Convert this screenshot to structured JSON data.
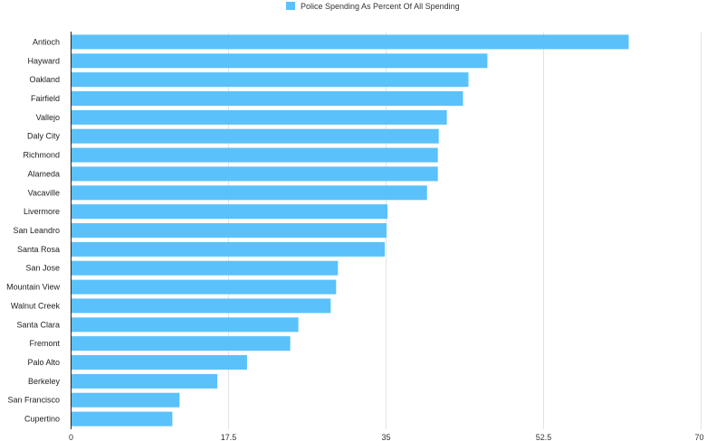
{
  "chart_data": {
    "type": "bar",
    "orientation": "horizontal",
    "title": "",
    "xlabel": "",
    "ylabel": "",
    "legend": {
      "position": "top-center",
      "entries": [
        "Police Spending As Percent Of All Spending"
      ]
    },
    "colors": {
      "bar": "#5ac1fb",
      "grid": "#e3e3e3",
      "axis": "#222222",
      "text": "#222222"
    },
    "grid": true,
    "xlim": [
      0,
      70
    ],
    "x_ticks": [
      0,
      17.5,
      35,
      52.5,
      70
    ],
    "x_tick_labels": [
      "0",
      "17.5",
      "35",
      "52.5",
      "70"
    ],
    "categories": [
      "Antioch",
      "Hayward",
      "Oakland",
      "Fairfield",
      "Vallejo",
      "Daly City",
      "Richmond",
      "Alameda",
      "Vacaville",
      "Livermore",
      "San Leandro",
      "Santa Rosa",
      "San Jose",
      "Mountain View",
      "Walnut Creek",
      "Santa Clara",
      "Fremont",
      "Palo Alto",
      "Berkeley",
      "San Francisco",
      "Cupertino"
    ],
    "series": [
      {
        "name": "Police Spending As Percent Of All Spending",
        "values": [
          62,
          46.3,
          44.2,
          43.6,
          41.8,
          40.9,
          40.8,
          40.8,
          39.6,
          35.2,
          35.1,
          34.9,
          29.7,
          29.5,
          28.9,
          25.3,
          24.4,
          19.6,
          16.3,
          12.1,
          11.3
        ]
      }
    ]
  }
}
